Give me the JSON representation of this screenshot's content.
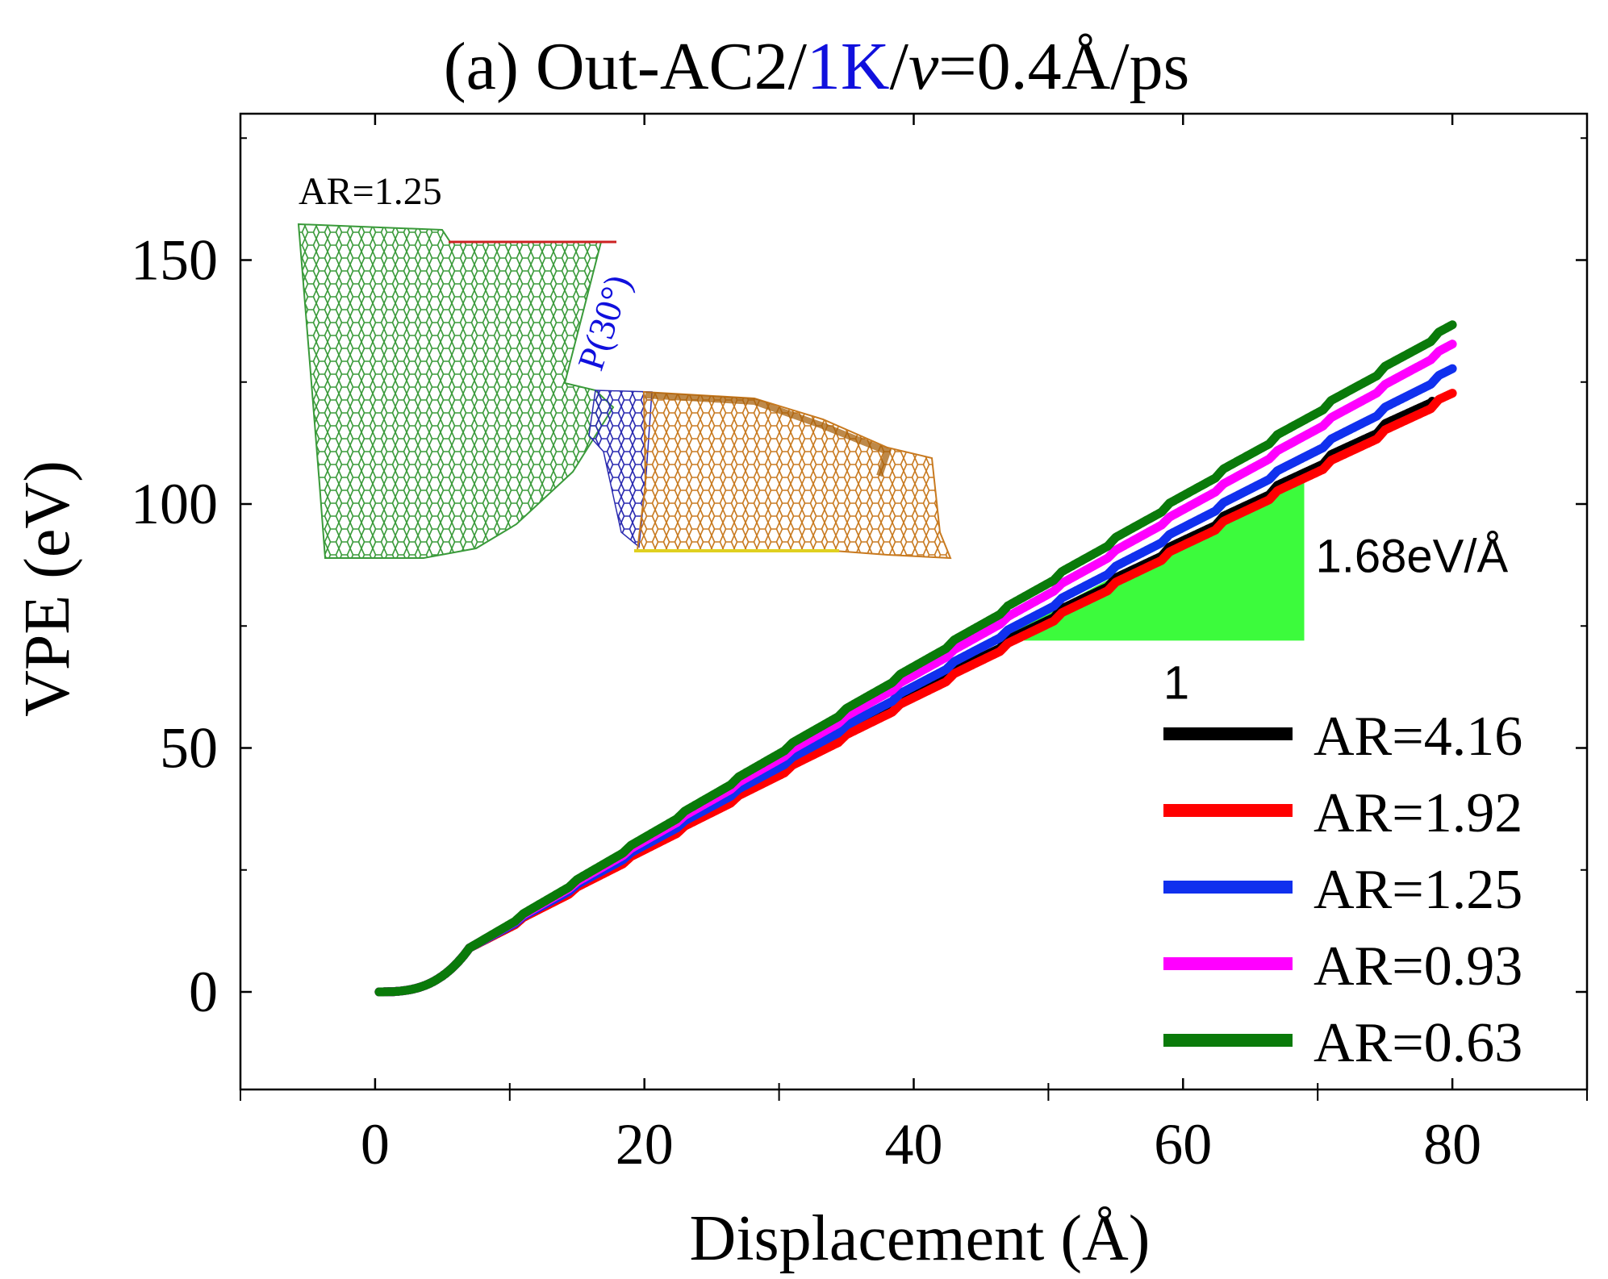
{
  "chart_data": {
    "type": "line",
    "title": {
      "prefix": "(a) Out-AC2/",
      "temp": "1K",
      "slash": "/",
      "v": "v",
      "rest": "=0.4Å/ps",
      "temp_color": "#1010dd"
    },
    "xlabel": "Displacement (Å)",
    "ylabel": "VPE (eV)",
    "xlim": [
      -10,
      90
    ],
    "ylim": [
      -20,
      180
    ],
    "xticks": [
      0,
      20,
      40,
      60,
      80
    ],
    "yticks": [
      0,
      50,
      100,
      150
    ],
    "series": [
      {
        "name": "AR=4.16",
        "color": "#000000",
        "offset": -3.2,
        "slopeAdj": -0.04,
        "period": 4.0,
        "amp": 1.8,
        "end": 78.5,
        "endVal": 122
      },
      {
        "name": "AR=1.92",
        "color": "#ff0000",
        "offset": -2.0,
        "slopeAdj": -0.03,
        "period": 4.0,
        "amp": 1.6,
        "end": 80,
        "endVal": 123
      },
      {
        "name": "AR=1.25",
        "color": "#1030ee",
        "offset": -0.8,
        "slopeAdj": -0.015,
        "period": 4.0,
        "amp": 1.4,
        "end": 80,
        "endVal": 128
      },
      {
        "name": "AR=0.93",
        "color": "#ff00ff",
        "offset": 0.0,
        "slopeAdj": 0.0,
        "period": 4.0,
        "amp": 1.2,
        "end": 80,
        "endVal": 133
      },
      {
        "name": "AR=0.63",
        "color": "#0a7a0a",
        "offset": 1.2,
        "slopeAdj": 0.01,
        "period": 4.0,
        "amp": 1.5,
        "end": 80,
        "endVal": 137
      }
    ],
    "slope": {
      "label": "1.68eV/Å",
      "run_label": "1",
      "x0": 46,
      "x1": 69,
      "y0": 72,
      "y1": 106,
      "color": "#3cfb3c"
    },
    "inset": {
      "label": "AR=1.25",
      "region_label": "P(30°)",
      "region_color": "#1010dd"
    }
  }
}
